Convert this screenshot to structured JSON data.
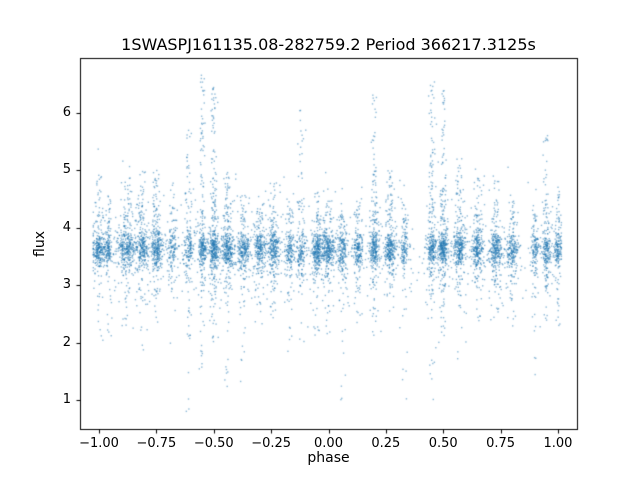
{
  "figure": {
    "title": "1SWASPJ161135.08-282759.2 Period 366217.3125s"
  },
  "chart_data": {
    "type": "scatter",
    "title": "1SWASPJ161135.08-282759.2 Period 366217.3125s",
    "xlabel": "phase",
    "ylabel": "flux",
    "xlim": [
      -1.083,
      1.083
    ],
    "ylim": [
      0.5,
      6.95
    ],
    "xticks": [
      -1.0,
      -0.75,
      -0.5,
      -0.25,
      0.0,
      0.25,
      0.5,
      0.75,
      1.0
    ],
    "x_tick_labels": [
      "−1.00",
      "−0.75",
      "−0.50",
      "−0.25",
      "0.00",
      "0.25",
      "0.50",
      "0.75",
      "1.00"
    ],
    "yticks": [
      1,
      2,
      3,
      4,
      5,
      6
    ],
    "y_tick_labels": [
      "1",
      "2",
      "3",
      "4",
      "5",
      "6"
    ],
    "legend": "none",
    "grid": false,
    "point_color": "#1f77b4",
    "point_alpha": 0.5,
    "marker_size_px": 1.4,
    "seed": 20240616,
    "band": {
      "flux_mean": 3.62,
      "flux_sigma": 0.16,
      "wide_fraction": 0.25,
      "wide_sigma": 0.45,
      "wide_clip": [
        2.1,
        5.05
      ]
    },
    "background_points": {
      "n": 550,
      "x_range": [
        -1.02,
        1.01
      ],
      "flux_mean": 3.55,
      "flux_sigma": 0.55,
      "clip": [
        1.1,
        5.6
      ]
    },
    "cluster_columns": [
      "phase_center",
      "phase_width",
      "n_band",
      "flux_up_max",
      "n_up",
      "flux_down_min",
      "n_down"
    ],
    "clusters": [
      [
        -1.0,
        0.045,
        260,
        5.0,
        22,
        1.9,
        8
      ],
      [
        -0.96,
        0.03,
        140,
        4.5,
        8,
        2.0,
        5
      ],
      [
        -0.88,
        0.06,
        320,
        4.9,
        28,
        2.2,
        14
      ],
      [
        -0.81,
        0.04,
        240,
        5.0,
        30,
        1.8,
        10
      ],
      [
        -0.75,
        0.04,
        280,
        5.0,
        30,
        2.3,
        10
      ],
      [
        -0.68,
        0.035,
        140,
        4.4,
        10,
        2.5,
        6
      ],
      [
        -0.61,
        0.03,
        150,
        5.9,
        28,
        0.8,
        18
      ],
      [
        -0.55,
        0.025,
        200,
        6.65,
        55,
        1.5,
        22
      ],
      [
        -0.5,
        0.03,
        290,
        6.55,
        70,
        2.0,
        28
      ],
      [
        -0.44,
        0.04,
        300,
        5.0,
        35,
        1.0,
        18
      ],
      [
        -0.37,
        0.04,
        240,
        4.6,
        18,
        1.0,
        14
      ],
      [
        -0.3,
        0.04,
        240,
        4.4,
        14,
        2.2,
        8
      ],
      [
        -0.24,
        0.04,
        270,
        4.8,
        20,
        2.4,
        10
      ],
      [
        -0.17,
        0.03,
        150,
        4.5,
        14,
        1.7,
        9
      ],
      [
        -0.12,
        0.03,
        150,
        6.1,
        24,
        2.0,
        9
      ],
      [
        -0.05,
        0.04,
        290,
        4.7,
        18,
        2.2,
        10
      ],
      [
        0.0,
        0.04,
        290,
        4.5,
        14,
        1.9,
        10
      ],
      [
        0.06,
        0.03,
        190,
        4.3,
        10,
        1.0,
        14
      ],
      [
        0.13,
        0.03,
        190,
        4.5,
        12,
        2.3,
        8
      ],
      [
        0.2,
        0.03,
        240,
        6.35,
        55,
        2.0,
        14
      ],
      [
        0.27,
        0.04,
        270,
        5.0,
        30,
        2.4,
        12
      ],
      [
        0.33,
        0.03,
        130,
        4.4,
        10,
        1.0,
        10
      ],
      [
        0.45,
        0.03,
        220,
        6.55,
        65,
        0.85,
        22
      ],
      [
        0.5,
        0.03,
        280,
        6.45,
        65,
        2.0,
        24
      ],
      [
        0.57,
        0.04,
        280,
        5.2,
        32,
        1.5,
        14
      ],
      [
        0.65,
        0.04,
        250,
        4.9,
        22,
        2.3,
        10
      ],
      [
        0.73,
        0.04,
        270,
        4.9,
        22,
        2.4,
        10
      ],
      [
        0.8,
        0.04,
        200,
        4.6,
        14,
        2.2,
        8
      ],
      [
        0.9,
        0.03,
        130,
        4.4,
        10,
        1.3,
        10
      ],
      [
        0.95,
        0.03,
        180,
        6.1,
        28,
        2.1,
        12
      ],
      [
        1.0,
        0.025,
        150,
        4.6,
        14,
        2.1,
        8
      ]
    ]
  }
}
